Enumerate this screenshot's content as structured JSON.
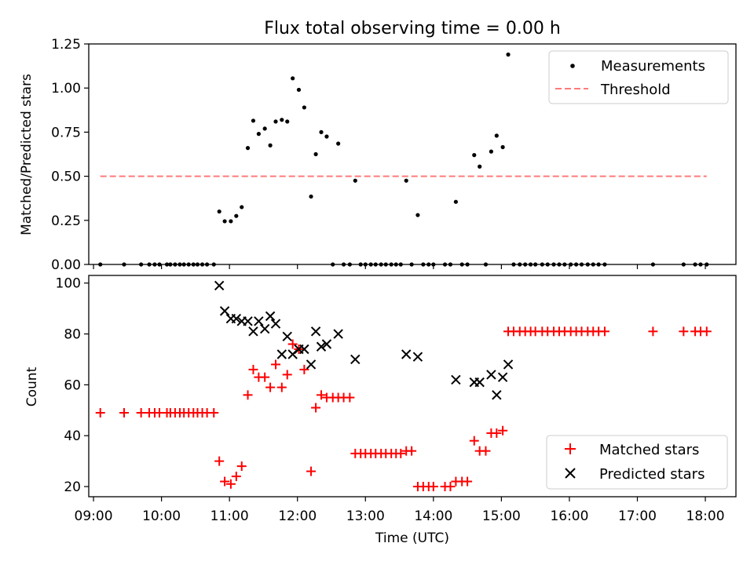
{
  "figure_title": "Flux total observing time = 0.00 h",
  "chart_data": [
    {
      "type": "scatter",
      "title": "Flux total observing time = 0.00 h",
      "xlabel": "",
      "ylabel": "Matched/Predicted stars",
      "xlim": [
        8.93,
        18.45
      ],
      "ylim": [
        0,
        1.25
      ],
      "yticks": [
        "0.00",
        "0.25",
        "0.50",
        "0.75",
        "1.00",
        "1.25"
      ],
      "legend": {
        "placement": "top-right"
      },
      "series": [
        {
          "name": "Measurements",
          "marker": "dot",
          "color": "#000000",
          "points": [
            [
              9.1,
              0
            ],
            [
              9.45,
              0
            ],
            [
              9.7,
              0
            ],
            [
              9.82,
              0
            ],
            [
              9.9,
              0
            ],
            [
              9.97,
              0
            ],
            [
              10.08,
              0
            ],
            [
              10.13,
              0
            ],
            [
              10.2,
              0
            ],
            [
              10.27,
              0
            ],
            [
              10.33,
              0
            ],
            [
              10.4,
              0
            ],
            [
              10.47,
              0
            ],
            [
              10.53,
              0
            ],
            [
              10.6,
              0
            ],
            [
              10.67,
              0
            ],
            [
              10.77,
              0
            ],
            [
              10.85,
              0.3
            ],
            [
              10.93,
              0.245
            ],
            [
              11.02,
              0.245
            ],
            [
              11.1,
              0.275
            ],
            [
              11.18,
              0.325
            ],
            [
              11.27,
              0.66
            ],
            [
              11.35,
              0.815
            ],
            [
              11.43,
              0.74
            ],
            [
              11.52,
              0.77
            ],
            [
              11.6,
              0.675
            ],
            [
              11.68,
              0.81
            ],
            [
              11.77,
              0.82
            ],
            [
              11.85,
              0.81
            ],
            [
              11.93,
              1.055
            ],
            [
              12.02,
              0.99
            ],
            [
              12.1,
              0.89
            ],
            [
              12.2,
              0.385
            ],
            [
              12.27,
              0.625
            ],
            [
              12.35,
              0.75
            ],
            [
              12.43,
              0.725
            ],
            [
              12.6,
              0.685
            ],
            [
              12.52,
              0
            ],
            [
              12.68,
              0
            ],
            [
              12.77,
              0
            ],
            [
              12.85,
              0.475
            ],
            [
              12.93,
              0
            ],
            [
              13.0,
              0
            ],
            [
              13.08,
              0
            ],
            [
              13.15,
              0
            ],
            [
              13.23,
              0
            ],
            [
              13.3,
              0
            ],
            [
              13.38,
              0
            ],
            [
              13.45,
              0
            ],
            [
              13.52,
              0
            ],
            [
              13.6,
              0.475
            ],
            [
              13.68,
              0
            ],
            [
              13.77,
              0.28
            ],
            [
              13.85,
              0
            ],
            [
              13.93,
              0
            ],
            [
              14.0,
              0
            ],
            [
              14.17,
              0
            ],
            [
              14.25,
              0
            ],
            [
              14.33,
              0.355
            ],
            [
              14.42,
              0
            ],
            [
              14.5,
              0
            ],
            [
              14.6,
              0.62
            ],
            [
              14.68,
              0.555
            ],
            [
              14.77,
              0
            ],
            [
              14.85,
              0.64
            ],
            [
              14.93,
              0.73
            ],
            [
              15.02,
              0.665
            ],
            [
              15.1,
              1.19
            ],
            [
              15.18,
              0
            ],
            [
              15.27,
              0
            ],
            [
              15.35,
              0
            ],
            [
              15.43,
              0
            ],
            [
              15.5,
              0
            ],
            [
              15.6,
              0
            ],
            [
              15.68,
              0
            ],
            [
              15.77,
              0
            ],
            [
              15.85,
              0
            ],
            [
              15.93,
              0
            ],
            [
              16.02,
              0
            ],
            [
              16.1,
              0
            ],
            [
              16.18,
              0
            ],
            [
              16.27,
              0
            ],
            [
              16.35,
              0
            ],
            [
              16.43,
              0
            ],
            [
              16.52,
              0
            ],
            [
              17.23,
              0
            ],
            [
              17.68,
              0
            ],
            [
              17.85,
              0
            ],
            [
              17.93,
              0
            ],
            [
              18.02,
              0
            ]
          ]
        },
        {
          "name": "Threshold",
          "line_style": "dashed",
          "color": "#ff7a7a",
          "points": [
            [
              9.1,
              0.5
            ],
            [
              18.02,
              0.5
            ]
          ]
        }
      ]
    },
    {
      "type": "scatter",
      "title": "",
      "xlabel": "Time (UTC)",
      "ylabel": "Count",
      "xlim": [
        8.93,
        18.45
      ],
      "ylim": [
        16,
        103
      ],
      "yticks": [
        "20",
        "40",
        "60",
        "80",
        "100"
      ],
      "x_axis_type": "time",
      "xtick_labels": [
        [
          "09:00",
          9
        ],
        [
          "10:00",
          10
        ],
        [
          "11:00",
          11
        ],
        [
          "12:00",
          12
        ],
        [
          "13:00",
          13
        ],
        [
          "14:00",
          14
        ],
        [
          "15:00",
          15
        ],
        [
          "16:00",
          16
        ],
        [
          "17:00",
          17
        ],
        [
          "18:00",
          18
        ]
      ],
      "legend": {
        "placement": "bottom-right"
      },
      "series": [
        {
          "name": "Matched stars",
          "marker": "plus",
          "color": "#ff0000",
          "points": [
            [
              9.1,
              49
            ],
            [
              9.45,
              49
            ],
            [
              9.7,
              49
            ],
            [
              9.82,
              49
            ],
            [
              9.9,
              49
            ],
            [
              9.97,
              49
            ],
            [
              10.08,
              49
            ],
            [
              10.13,
              49
            ],
            [
              10.2,
              49
            ],
            [
              10.27,
              49
            ],
            [
              10.33,
              49
            ],
            [
              10.4,
              49
            ],
            [
              10.47,
              49
            ],
            [
              10.53,
              49
            ],
            [
              10.6,
              49
            ],
            [
              10.67,
              49
            ],
            [
              10.77,
              49
            ],
            [
              10.85,
              30
            ],
            [
              10.93,
              22
            ],
            [
              11.02,
              21
            ],
            [
              11.1,
              24
            ],
            [
              11.18,
              28
            ],
            [
              11.27,
              56
            ],
            [
              11.35,
              66
            ],
            [
              11.43,
              63
            ],
            [
              11.52,
              63
            ],
            [
              11.6,
              59
            ],
            [
              11.68,
              68
            ],
            [
              11.77,
              59
            ],
            [
              11.85,
              64
            ],
            [
              11.93,
              76
            ],
            [
              12.02,
              74
            ],
            [
              12.1,
              66
            ],
            [
              12.2,
              26
            ],
            [
              12.27,
              51
            ],
            [
              12.35,
              56
            ],
            [
              12.43,
              55
            ],
            [
              12.52,
              55
            ],
            [
              12.6,
              55
            ],
            [
              12.68,
              55
            ],
            [
              12.77,
              55
            ],
            [
              12.85,
              33
            ],
            [
              12.93,
              33
            ],
            [
              13.0,
              33
            ],
            [
              13.08,
              33
            ],
            [
              13.15,
              33
            ],
            [
              13.23,
              33
            ],
            [
              13.3,
              33
            ],
            [
              13.38,
              33
            ],
            [
              13.45,
              33
            ],
            [
              13.52,
              33
            ],
            [
              13.6,
              34
            ],
            [
              13.68,
              34
            ],
            [
              13.77,
              20
            ],
            [
              13.85,
              20
            ],
            [
              13.93,
              20
            ],
            [
              14.0,
              20
            ],
            [
              14.17,
              20
            ],
            [
              14.25,
              20
            ],
            [
              14.33,
              22
            ],
            [
              14.42,
              22
            ],
            [
              14.5,
              22
            ],
            [
              14.6,
              38
            ],
            [
              14.68,
              34
            ],
            [
              14.77,
              34
            ],
            [
              14.85,
              41
            ],
            [
              14.93,
              41
            ],
            [
              15.02,
              42
            ],
            [
              15.1,
              81
            ],
            [
              15.18,
              81
            ],
            [
              15.27,
              81
            ],
            [
              15.35,
              81
            ],
            [
              15.43,
              81
            ],
            [
              15.5,
              81
            ],
            [
              15.6,
              81
            ],
            [
              15.68,
              81
            ],
            [
              15.77,
              81
            ],
            [
              15.85,
              81
            ],
            [
              15.93,
              81
            ],
            [
              16.02,
              81
            ],
            [
              16.1,
              81
            ],
            [
              16.18,
              81
            ],
            [
              16.27,
              81
            ],
            [
              16.35,
              81
            ],
            [
              16.43,
              81
            ],
            [
              16.52,
              81
            ],
            [
              17.23,
              81
            ],
            [
              17.68,
              81
            ],
            [
              17.85,
              81
            ],
            [
              17.93,
              81
            ],
            [
              18.02,
              81
            ]
          ]
        },
        {
          "name": "Predicted stars",
          "marker": "x",
          "color": "#000000",
          "points": [
            [
              10.85,
              99
            ],
            [
              10.93,
              89
            ],
            [
              11.02,
              86
            ],
            [
              11.1,
              86
            ],
            [
              11.18,
              85
            ],
            [
              11.27,
              85
            ],
            [
              11.35,
              81
            ],
            [
              11.43,
              85
            ],
            [
              11.52,
              82
            ],
            [
              11.6,
              87
            ],
            [
              11.68,
              84
            ],
            [
              11.77,
              72
            ],
            [
              11.85,
              79
            ],
            [
              11.93,
              72
            ],
            [
              12.02,
              74
            ],
            [
              12.1,
              74
            ],
            [
              12.2,
              68
            ],
            [
              12.27,
              81
            ],
            [
              12.35,
              75
            ],
            [
              12.43,
              76
            ],
            [
              12.6,
              80
            ],
            [
              12.85,
              70
            ],
            [
              13.6,
              72
            ],
            [
              13.77,
              71
            ],
            [
              14.33,
              62
            ],
            [
              14.6,
              61
            ],
            [
              14.68,
              61
            ],
            [
              14.85,
              64
            ],
            [
              14.93,
              56
            ],
            [
              15.02,
              63
            ],
            [
              15.1,
              68
            ]
          ]
        }
      ]
    }
  ]
}
